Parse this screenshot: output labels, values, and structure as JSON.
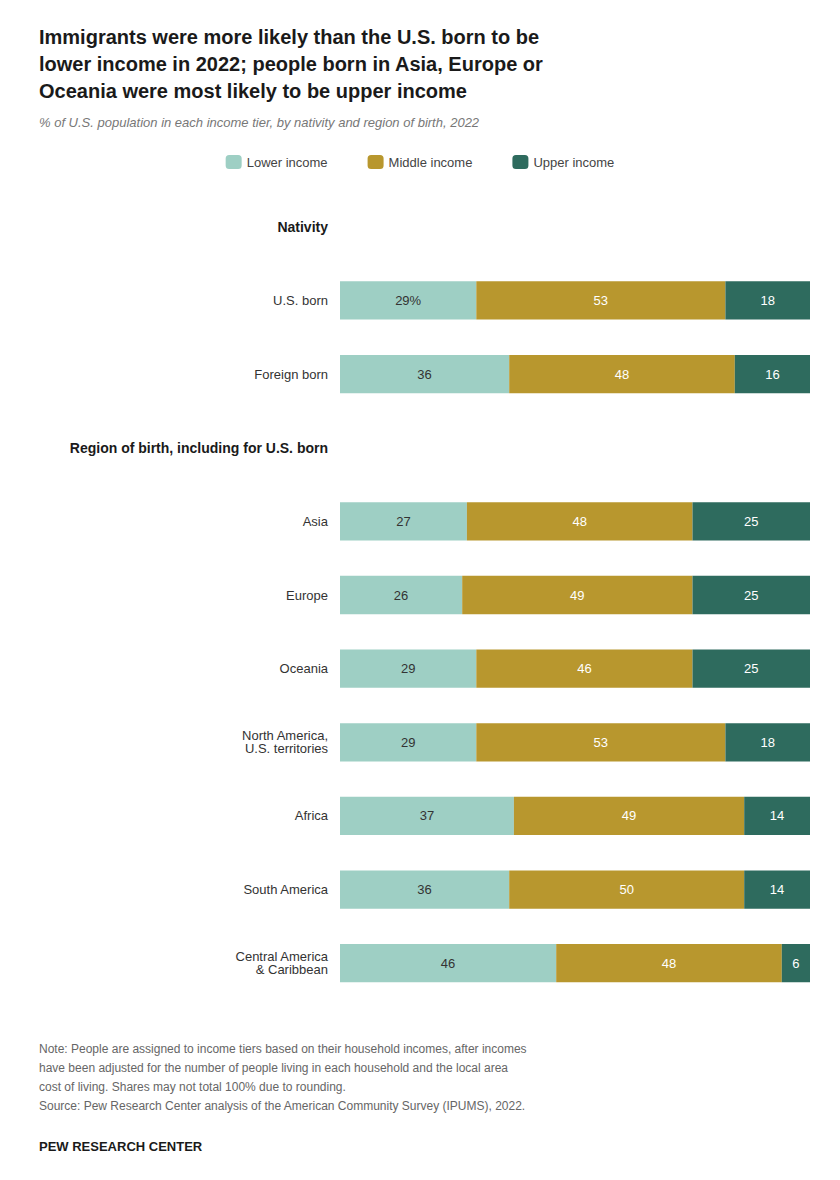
{
  "chart_data": {
    "type": "bar",
    "orientation": "horizontal",
    "stacked": true,
    "title": "Immigrants were more likely than the U.S. born to be\nlower income in 2022; people born in Asia, Europe or\nOceania were most likely to be upper income",
    "subtitle": "% of U.S. population in each income tier, by nativity and region of birth, 2022",
    "categories": [
      "U.S. born",
      "Foreign born",
      "Asia",
      "Europe",
      "Oceania",
      "North America,\nU.S. territories",
      "Africa",
      "South America",
      "Central America\n& Caribbean"
    ],
    "annotations": [
      {
        "text": "Nativity",
        "before": "U.S. born"
      },
      {
        "text": "Region of birth, including for U.S. born",
        "before": "Asia"
      }
    ],
    "series": [
      {
        "name": "Lower income",
        "color": "#9ecfc4",
        "values": [
          29,
          36,
          27,
          26,
          29,
          29,
          37,
          36,
          46
        ],
        "value_labels": [
          "29%",
          "36",
          "27",
          "26",
          "29",
          "29",
          "37",
          "36",
          "46"
        ]
      },
      {
        "name": "Middle income",
        "color": "#b8972e",
        "values": [
          53,
          48,
          48,
          49,
          46,
          53,
          49,
          50,
          48
        ]
      },
      {
        "name": "Upper income",
        "color": "#2e6b5e",
        "values": [
          18,
          16,
          25,
          25,
          25,
          18,
          14,
          14,
          6
        ]
      }
    ],
    "xlim": [
      0,
      100
    ],
    "data_labels": true,
    "tick_labels": "y",
    "grid": false,
    "legend": "top",
    "note": "Note: People are assigned to income tiers based on their household incomes, after incomes\nhave been adjusted for the number of people living in each household and the local area\ncost of living. Shares may not total 100% due to rounding.\nSource: Pew Research Center analysis of the American Community Survey (IPUMS), 2022.",
    "source": "PEW RESEARCH CENTER"
  }
}
